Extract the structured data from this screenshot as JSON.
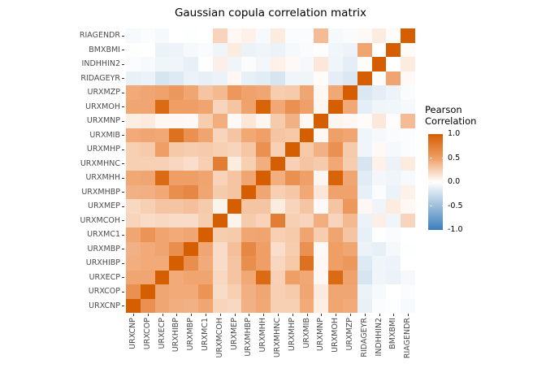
{
  "chart_data": {
    "type": "heatmap",
    "title": "Gaussian copula correlation matrix",
    "variables": [
      "URXCNP",
      "URXCOP",
      "URXECP",
      "URXHIBP",
      "URXMBP",
      "URXMC1",
      "URXMCOH",
      "URXMEP",
      "URXMHBP",
      "URXMHH",
      "URXMHNC",
      "URXMHP",
      "URXMIB",
      "URXMNP",
      "URXMOH",
      "URXMZP",
      "RIDAGEYR",
      "INDHHIN2",
      "BMXBMI",
      "RIAGENDR"
    ],
    "x_axis_order": "left-to-right as in variables",
    "y_axis_order": "bottom-to-top as in variables (displayed top-to-bottom reversed)",
    "value_range": [
      -1,
      1
    ],
    "matrix": [
      [
        1,
        0.6,
        0.46,
        0.42,
        0.4,
        0.46,
        0.22,
        0.2,
        0.4,
        0.45,
        0.25,
        0.25,
        0.44,
        0.09,
        0.46,
        0.44,
        -0.11,
        -0.02,
        -0.01,
        -0.04
      ],
      [
        0.6,
        1,
        0.46,
        0.44,
        0.44,
        0.58,
        0.18,
        0.25,
        0.41,
        0.46,
        0.25,
        0.27,
        0.46,
        0.11,
        0.46,
        0.46,
        -0.1,
        -0.04,
        0,
        -0.02
      ],
      [
        0.46,
        0.46,
        1,
        0.44,
        0.47,
        0.47,
        0.2,
        0.3,
        0.45,
        0.9,
        0.24,
        0.5,
        0.45,
        0.04,
        0.9,
        0.48,
        -0.2,
        -0.08,
        -0.1,
        -0.05
      ],
      [
        0.42,
        0.44,
        0.44,
        1,
        0.62,
        0.44,
        0.18,
        0.3,
        0.62,
        0.5,
        0.21,
        0.28,
        0.85,
        0.04,
        0.5,
        0.55,
        -0.17,
        -0.08,
        -0.09,
        0
      ],
      [
        0.4,
        0.44,
        0.47,
        0.62,
        1,
        0.46,
        0.18,
        0.33,
        0.67,
        0.5,
        0.17,
        0.26,
        0.6,
        0.03,
        0.5,
        0.46,
        -0.1,
        -0.12,
        -0.05,
        -0.01
      ],
      [
        0.46,
        0.58,
        0.47,
        0.44,
        0.46,
        1,
        0.26,
        0.27,
        0.46,
        0.47,
        0.25,
        0.27,
        0.47,
        0.26,
        0.47,
        0.3,
        -0.12,
        -0.01,
        -0.03,
        0
      ],
      [
        0.22,
        0.18,
        0.2,
        0.18,
        0.18,
        0.26,
        1,
        0.06,
        0.27,
        0.23,
        0.75,
        0.25,
        0.22,
        0.42,
        0.22,
        0.36,
        -0.1,
        0.08,
        -0.08,
        0.22
      ],
      [
        0.2,
        0.25,
        0.3,
        0.3,
        0.33,
        0.27,
        0.06,
        1,
        0.3,
        0.3,
        0.1,
        0.22,
        0.3,
        0.03,
        0.3,
        0.55,
        0.04,
        -0.08,
        0.1,
        0.04
      ],
      [
        0.4,
        0.41,
        0.45,
        0.62,
        0.67,
        0.46,
        0.27,
        0.3,
        1,
        0.46,
        0.25,
        0.29,
        0.45,
        0.13,
        0.48,
        0.48,
        -0.12,
        -0.02,
        -0.1,
        0.07
      ],
      [
        0.45,
        0.46,
        0.9,
        0.5,
        0.5,
        0.47,
        0.23,
        0.3,
        0.46,
        1,
        0.42,
        0.6,
        0.49,
        0.05,
        0.95,
        0.46,
        -0.15,
        -0.06,
        -0.08,
        -0.04
      ],
      [
        0.25,
        0.25,
        0.24,
        0.21,
        0.17,
        0.25,
        0.75,
        0.1,
        0.25,
        0.42,
        1,
        0.24,
        0.3,
        0.27,
        0.45,
        0.26,
        -0.2,
        0.07,
        -0.1,
        0.1
      ],
      [
        0.25,
        0.27,
        0.5,
        0.28,
        0.26,
        0.27,
        0.25,
        0.22,
        0.29,
        0.6,
        0.24,
        1,
        0.28,
        0.4,
        0.6,
        0.27,
        -0.08,
        0.03,
        -0.05,
        -0.02
      ],
      [
        0.44,
        0.46,
        0.45,
        0.85,
        0.6,
        0.47,
        0.22,
        0.3,
        0.45,
        0.49,
        0.3,
        0.28,
        1,
        0.04,
        0.49,
        0.46,
        -0.08,
        -0.05,
        -0.03,
        -0.02
      ],
      [
        0.09,
        0.11,
        0.04,
        0.04,
        0.03,
        0.26,
        0.42,
        0.03,
        0.13,
        0.05,
        0.27,
        0.4,
        0.04,
        1,
        0.05,
        0.04,
        0.02,
        0.12,
        0.01,
        0.35
      ],
      [
        0.46,
        0.46,
        0.9,
        0.5,
        0.5,
        0.47,
        0.22,
        0.3,
        0.48,
        0.95,
        0.45,
        0.6,
        0.49,
        0.05,
        1,
        0.45,
        -0.13,
        -0.08,
        -0.07,
        -0.05
      ],
      [
        0.44,
        0.46,
        0.48,
        0.55,
        0.46,
        0.3,
        0.36,
        0.55,
        0.48,
        0.46,
        0.26,
        0.27,
        0.46,
        0.04,
        0.45,
        1,
        -0.18,
        -0.13,
        -0.09,
        -0.03
      ],
      [
        -0.11,
        -0.1,
        -0.2,
        -0.17,
        -0.1,
        -0.12,
        -0.1,
        0.04,
        -0.12,
        -0.15,
        -0.2,
        -0.08,
        -0.08,
        0.02,
        -0.13,
        -0.18,
        1,
        0.02,
        0.47,
        0.03
      ],
      [
        -0.02,
        -0.04,
        -0.08,
        -0.08,
        -0.12,
        -0.01,
        0.08,
        -0.08,
        -0.02,
        -0.06,
        0.07,
        0.03,
        -0.05,
        0.12,
        -0.08,
        -0.13,
        0.02,
        1,
        0,
        0.1
      ],
      [
        -0.01,
        0,
        -0.1,
        -0.09,
        -0.05,
        -0.03,
        -0.08,
        0.1,
        -0.1,
        -0.08,
        -0.1,
        -0.05,
        -0.03,
        0.01,
        -0.07,
        -0.09,
        0.47,
        0,
        1,
        0.02
      ],
      [
        -0.04,
        -0.02,
        -0.05,
        0,
        -0.01,
        0,
        0.22,
        0.04,
        0.07,
        -0.04,
        0.1,
        -0.02,
        -0.02,
        0.35,
        -0.05,
        -0.03,
        0.03,
        0.1,
        0.02,
        1
      ]
    ],
    "colors": {
      "high": "#D55E00",
      "mid_high": "#EF9E66",
      "mid": "#FFFFFF",
      "mid_low": "#9CBEDC",
      "low": "#3A7EBE",
      "axis_text": "#4d4d4d",
      "tick": "#333333"
    },
    "legend": {
      "title_lines": [
        "Pearson",
        "Correlation"
      ],
      "ticks": [
        "1.0",
        "0.5",
        "0.0",
        "-0.5",
        "-1.0"
      ],
      "tick_values": [
        1,
        0.5,
        0,
        -0.5,
        -1
      ]
    }
  }
}
